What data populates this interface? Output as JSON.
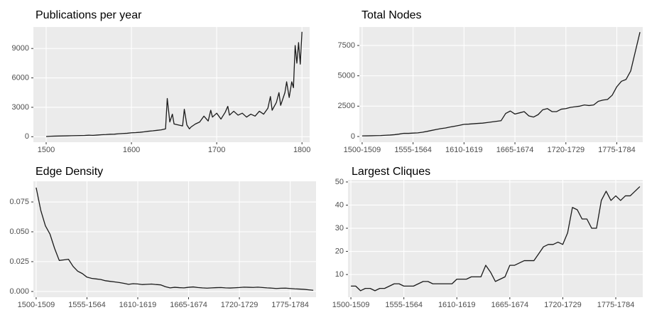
{
  "chart_data": [
    {
      "type": "line",
      "title": "Publications per year",
      "color": "#1a1a1a",
      "grid": true,
      "x": [
        1500,
        1505,
        1510,
        1515,
        1520,
        1525,
        1530,
        1535,
        1540,
        1545,
        1550,
        1555,
        1560,
        1565,
        1570,
        1575,
        1580,
        1585,
        1590,
        1595,
        1600,
        1605,
        1610,
        1615,
        1620,
        1625,
        1630,
        1635,
        1640,
        1642,
        1645,
        1648,
        1650,
        1655,
        1660,
        1662,
        1665,
        1668,
        1670,
        1675,
        1680,
        1685,
        1690,
        1693,
        1695,
        1700,
        1705,
        1710,
        1713,
        1715,
        1720,
        1725,
        1730,
        1735,
        1740,
        1745,
        1750,
        1755,
        1760,
        1763,
        1765,
        1770,
        1773,
        1775,
        1780,
        1782,
        1785,
        1788,
        1790,
        1792,
        1794,
        1796,
        1798,
        1800
      ],
      "values": [
        20,
        50,
        60,
        70,
        80,
        90,
        100,
        110,
        120,
        130,
        150,
        140,
        170,
        200,
        220,
        250,
        260,
        300,
        330,
        350,
        400,
        420,
        450,
        500,
        560,
        600,
        650,
        700,
        800,
        3900,
        1500,
        2300,
        1300,
        1200,
        1100,
        2800,
        1200,
        800,
        1000,
        1300,
        1500,
        2100,
        1600,
        2700,
        2000,
        2400,
        1800,
        2500,
        3100,
        2200,
        2600,
        2200,
        2400,
        2000,
        2300,
        2100,
        2600,
        2300,
        2900,
        4100,
        2700,
        3500,
        4500,
        3200,
        4500,
        5600,
        4000,
        5600,
        5000,
        9300,
        7500,
        9600,
        7400,
        10700
      ],
      "xlim": [
        1485,
        1809
      ],
      "xticks": [
        1500,
        1600,
        1700,
        1800
      ],
      "ylim": [
        -560,
        11190
      ],
      "yticks": [
        0,
        3000,
        6000,
        9000
      ]
    },
    {
      "type": "line",
      "title": "Total Nodes",
      "color": "#1a1a1a",
      "grid": true,
      "categories": [
        "1500-1509",
        null,
        null,
        null,
        null,
        null,
        null,
        null,
        null,
        null,
        null,
        "1555-1564",
        null,
        null,
        null,
        null,
        null,
        null,
        null,
        null,
        null,
        null,
        "1610-1619",
        null,
        null,
        null,
        null,
        null,
        null,
        null,
        null,
        null,
        null,
        "1665-1674",
        null,
        null,
        null,
        null,
        null,
        null,
        null,
        null,
        null,
        null,
        "1720-1729",
        null,
        null,
        null,
        null,
        null,
        null,
        null,
        null,
        null,
        null,
        "1775-1784",
        null,
        null,
        null,
        null,
        null
      ],
      "values": [
        50,
        55,
        60,
        70,
        80,
        100,
        120,
        150,
        200,
        260,
        260,
        280,
        300,
        350,
        420,
        500,
        580,
        650,
        700,
        780,
        850,
        920,
        1000,
        1020,
        1050,
        1080,
        1100,
        1150,
        1200,
        1250,
        1300,
        1900,
        2100,
        1850,
        1950,
        2050,
        1700,
        1600,
        1800,
        2200,
        2300,
        2050,
        2050,
        2250,
        2300,
        2400,
        2450,
        2500,
        2600,
        2550,
        2600,
        2900,
        3000,
        3050,
        3400,
        4100,
        4550,
        4700,
        5400,
        7000,
        8600
      ],
      "ylim": [
        -470,
        9020
      ],
      "yticks": [
        0,
        2500,
        5000,
        7500
      ]
    },
    {
      "type": "line",
      "title": "Edge Density",
      "color": "#1a1a1a",
      "grid": true,
      "categories": [
        "1500-1509",
        null,
        null,
        null,
        null,
        null,
        null,
        null,
        null,
        null,
        null,
        "1555-1564",
        null,
        null,
        null,
        null,
        null,
        null,
        null,
        null,
        null,
        null,
        "1610-1619",
        null,
        null,
        null,
        null,
        null,
        null,
        null,
        null,
        null,
        null,
        "1665-1674",
        null,
        null,
        null,
        null,
        null,
        null,
        null,
        null,
        null,
        null,
        "1720-1729",
        null,
        null,
        null,
        null,
        null,
        null,
        null,
        null,
        null,
        null,
        "1775-1784",
        null,
        null,
        null,
        null,
        null
      ],
      "values": [
        0.087,
        0.068,
        0.055,
        0.048,
        0.036,
        0.026,
        0.0265,
        0.027,
        0.021,
        0.017,
        0.015,
        0.012,
        0.011,
        0.0105,
        0.01,
        0.009,
        0.0085,
        0.008,
        0.0075,
        0.0068,
        0.006,
        0.0065,
        0.0063,
        0.0058,
        0.006,
        0.0062,
        0.0058,
        0.0055,
        0.004,
        0.003,
        0.0035,
        0.0032,
        0.003,
        0.0035,
        0.0038,
        0.0033,
        0.003,
        0.0028,
        0.003,
        0.0032,
        0.0033,
        0.003,
        0.0029,
        0.0031,
        0.0033,
        0.0036,
        0.0035,
        0.0034,
        0.0036,
        0.0033,
        0.003,
        0.0028,
        0.0025,
        0.0027,
        0.0028,
        0.0025,
        0.0022,
        0.002,
        0.0018,
        0.0014,
        0.001
      ],
      "ylim": [
        -0.0048,
        0.0923
      ],
      "yticks": [
        {
          "value": 0,
          "label": "0.000"
        },
        0.025,
        {
          "value": 0.05,
          "label": "0.050"
        },
        0.075
      ]
    },
    {
      "type": "line",
      "title": "Largest Cliques",
      "color": "#1a1a1a",
      "grid": true,
      "categories": [
        "1500-1509",
        null,
        null,
        null,
        null,
        null,
        null,
        null,
        null,
        null,
        null,
        "1555-1564",
        null,
        null,
        null,
        null,
        null,
        null,
        null,
        null,
        null,
        null,
        "1610-1619",
        null,
        null,
        null,
        null,
        null,
        null,
        null,
        null,
        null,
        null,
        "1665-1674",
        null,
        null,
        null,
        null,
        null,
        null,
        null,
        null,
        null,
        null,
        "1720-1729",
        null,
        null,
        null,
        null,
        null,
        null,
        null,
        null,
        null,
        null,
        "1775-1784",
        null,
        null,
        null,
        null,
        null
      ],
      "values": [
        5,
        5,
        3,
        4,
        4,
        3,
        4,
        4,
        5,
        6,
        6,
        5,
        5,
        5,
        6,
        7,
        7,
        6,
        6,
        6,
        6,
        6,
        8,
        8,
        8,
        9,
        9,
        9,
        14,
        11,
        7,
        8,
        9,
        14,
        14,
        15,
        16,
        16,
        16,
        19,
        22,
        23,
        23,
        24,
        23,
        28,
        39,
        38,
        34,
        34,
        30,
        30,
        42,
        46,
        42,
        44,
        42,
        44,
        44,
        46,
        48
      ],
      "ylim": [
        0.2,
        50.9
      ],
      "yticks": [
        10,
        20,
        30,
        40,
        50
      ]
    }
  ]
}
